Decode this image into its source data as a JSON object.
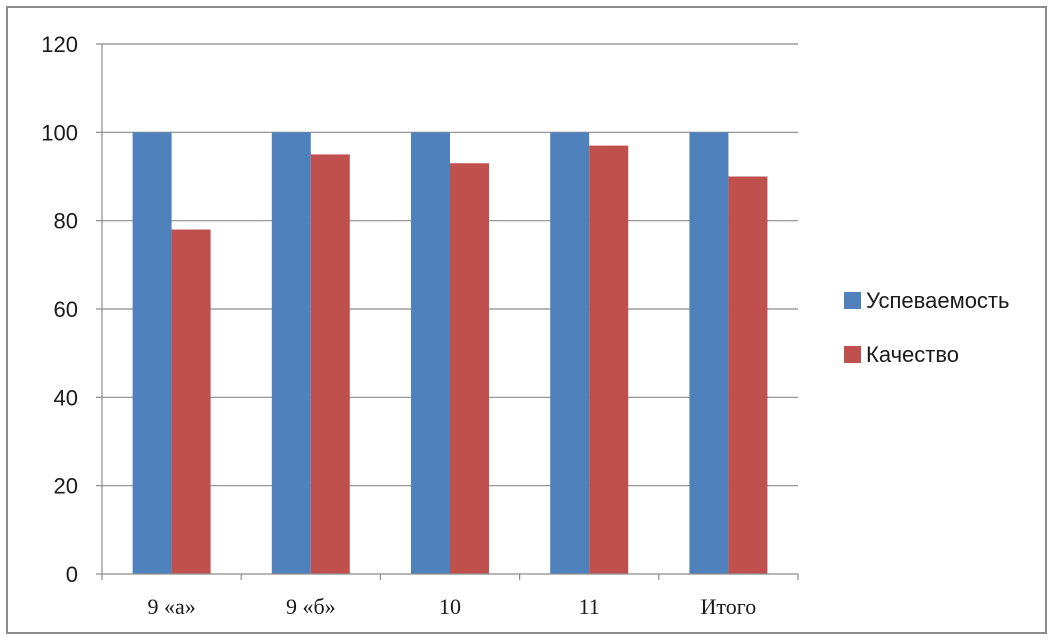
{
  "chart_data": {
    "type": "bar",
    "categories": [
      "9 «а»",
      "9 «б»",
      "10",
      "11",
      "Итого"
    ],
    "series": [
      {
        "name": "Успеваемость",
        "values": [
          100,
          100,
          100,
          100,
          100
        ],
        "color": "#4f81bd"
      },
      {
        "name": "Качество",
        "values": [
          78,
          95,
          93,
          97,
          90
        ],
        "color": "#c0504d"
      }
    ],
    "ylim": [
      0,
      120
    ],
    "yticks": [
      0,
      20,
      40,
      60,
      80,
      100,
      120
    ],
    "grid": true,
    "legend": "right"
  }
}
